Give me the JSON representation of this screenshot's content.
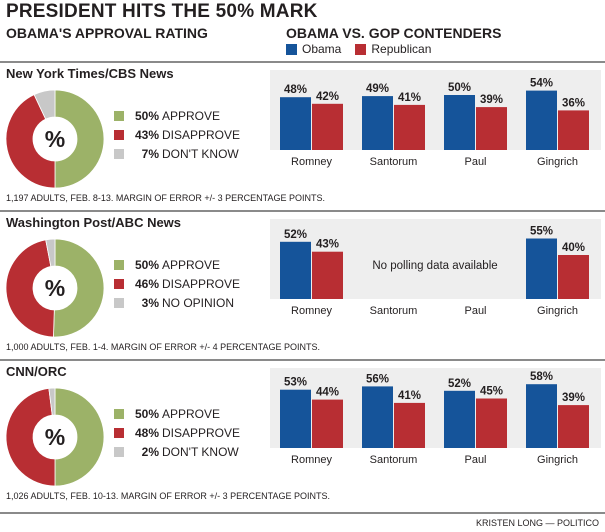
{
  "title": "PRESIDENT HITS THE 50% MARK",
  "left_subtitle": "OBAMA'S APPROVAL RATING",
  "right_subtitle": "OBAMA VS. GOP CONTENDERS",
  "legend": {
    "obama": "Obama",
    "republican": "Republican"
  },
  "colors": {
    "approve": "#9cb268",
    "disapprove": "#b82e33",
    "unknown": "#c8c8c8",
    "obama": "#15549a",
    "republican": "#b82e33",
    "panel_bg": "#eeeeee"
  },
  "donut_center_label": "%",
  "polls": [
    {
      "name": "New York Times/CBS News",
      "note": "1,197 ADULTS, FEB. 8-13. MARGIN OF ERROR +/- 3 PERCENTAGE POINTS.",
      "approval": [
        {
          "label": "APPROVE",
          "value": 50,
          "pct_text": "50%"
        },
        {
          "label": "DISAPPROVE",
          "value": 43,
          "pct_text": "43%"
        },
        {
          "label": "DON'T KNOW",
          "value": 7,
          "pct_text": "7%"
        }
      ],
      "no_data_text": ""
    },
    {
      "name": "Washington Post/ABC News",
      "note": "1,000 ADULTS, FEB. 1-4. MARGIN OF ERROR +/- 4 PERCENTAGE POINTS.",
      "approval": [
        {
          "label": "APPROVE",
          "value": 50,
          "pct_text": "50%"
        },
        {
          "label": "DISAPPROVE",
          "value": 46,
          "pct_text": "46%"
        },
        {
          "label": "NO OPINION",
          "value": 3,
          "pct_text": "3%"
        }
      ],
      "no_data_text": "No polling data available"
    },
    {
      "name": "CNN/ORC",
      "note": "1,026 ADULTS, FEB. 10-13. MARGIN OF ERROR +/- 3 PERCENTAGE POINTS.",
      "approval": [
        {
          "label": "APPROVE",
          "value": 50,
          "pct_text": "50%"
        },
        {
          "label": "DISAPPROVE",
          "value": 48,
          "pct_text": "48%"
        },
        {
          "label": "DON'T KNOW",
          "value": 2,
          "pct_text": "2%"
        }
      ],
      "no_data_text": ""
    }
  ],
  "chart_data": [
    {
      "type": "bar",
      "poll": "New York Times/CBS News",
      "categories": [
        "Romney",
        "Santorum",
        "Paul",
        "Gingrich"
      ],
      "series": [
        {
          "name": "Obama",
          "values": [
            48,
            49,
            50,
            54
          ],
          "labels": [
            "48%",
            "49%",
            "50%",
            "54%"
          ]
        },
        {
          "name": "Republican",
          "values": [
            42,
            41,
            39,
            36
          ],
          "labels": [
            "42%",
            "41%",
            "39%",
            "36%"
          ]
        }
      ]
    },
    {
      "type": "bar",
      "poll": "Washington Post/ABC News",
      "categories": [
        "Romney",
        "Santorum",
        "Paul",
        "Gingrich"
      ],
      "series": [
        {
          "name": "Obama",
          "values": [
            52,
            null,
            null,
            55
          ],
          "labels": [
            "52%",
            "",
            "",
            "55%"
          ]
        },
        {
          "name": "Republican",
          "values": [
            43,
            null,
            null,
            40
          ],
          "labels": [
            "43%",
            "",
            "",
            "40%"
          ]
        }
      ]
    },
    {
      "type": "bar",
      "poll": "CNN/ORC",
      "categories": [
        "Romney",
        "Santorum",
        "Paul",
        "Gingrich"
      ],
      "series": [
        {
          "name": "Obama",
          "values": [
            53,
            56,
            52,
            58
          ],
          "labels": [
            "53%",
            "56%",
            "52%",
            "58%"
          ]
        },
        {
          "name": "Republican",
          "values": [
            44,
            41,
            45,
            39
          ],
          "labels": [
            "44%",
            "41%",
            "45%",
            "39%"
          ]
        }
      ]
    }
  ],
  "credit": "KRISTEN LONG — POLITICO"
}
